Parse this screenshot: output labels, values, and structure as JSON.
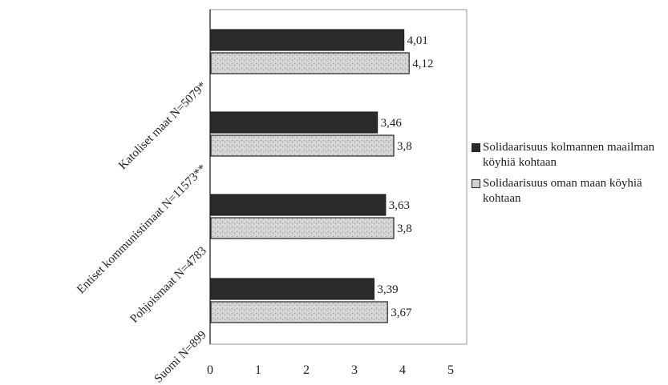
{
  "chart_data": {
    "type": "bar",
    "orientation": "horizontal",
    "categories": [
      "Katoliset maat N=5079*",
      "Entiset kommunistimaat N=11573**",
      "Pohjoismaat N=4783",
      "Suomi N=899"
    ],
    "series": [
      {
        "name": "Solidaarisuus kolmannen maailman köyhiä kohtaan",
        "values": [
          4.01,
          3.46,
          3.63,
          3.39
        ],
        "labels": [
          "4,01",
          "3,46",
          "3,63",
          "3,39"
        ],
        "color": "#2b2b2b"
      },
      {
        "name": "Solidaarisuus oman maan köyhiä kohtaan",
        "values": [
          4.12,
          3.8,
          3.8,
          3.67
        ],
        "labels": [
          "4,12",
          "3,8",
          "3,8",
          "3,67"
        ],
        "color": "#d0d0d0"
      }
    ],
    "xticks": [
      "0",
      "1",
      "2",
      "3",
      "4",
      "5"
    ],
    "xlim": [
      0,
      5
    ],
    "grid": false,
    "legend": "right"
  }
}
